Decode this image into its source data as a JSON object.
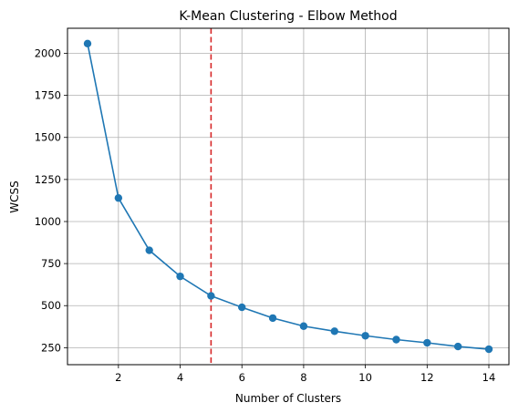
{
  "chart_data": {
    "type": "line",
    "title": "K-Mean Clustering - Elbow Method",
    "xlabel": "Number of Clusters",
    "ylabel": "WCSS",
    "x": [
      1,
      2,
      3,
      4,
      5,
      6,
      7,
      8,
      9,
      10,
      11,
      12,
      13,
      14
    ],
    "series": [
      {
        "values": [
          2058,
          1140,
          829,
          674,
          558,
          490,
          426,
          378,
          348,
          321,
          298,
          279,
          257,
          241
        ]
      }
    ],
    "xlim": [
      0.35,
      14.65
    ],
    "ylim": [
      149,
      2149
    ],
    "xticks": [
      2,
      4,
      6,
      8,
      10,
      12,
      14
    ],
    "yticks": [
      250,
      500,
      750,
      1000,
      1250,
      1500,
      1750,
      2000
    ],
    "grid": true,
    "line_color": "#1f77b4",
    "marker": "circle",
    "vline": {
      "x": 5,
      "color": "#d62728",
      "style": "dashed"
    }
  }
}
